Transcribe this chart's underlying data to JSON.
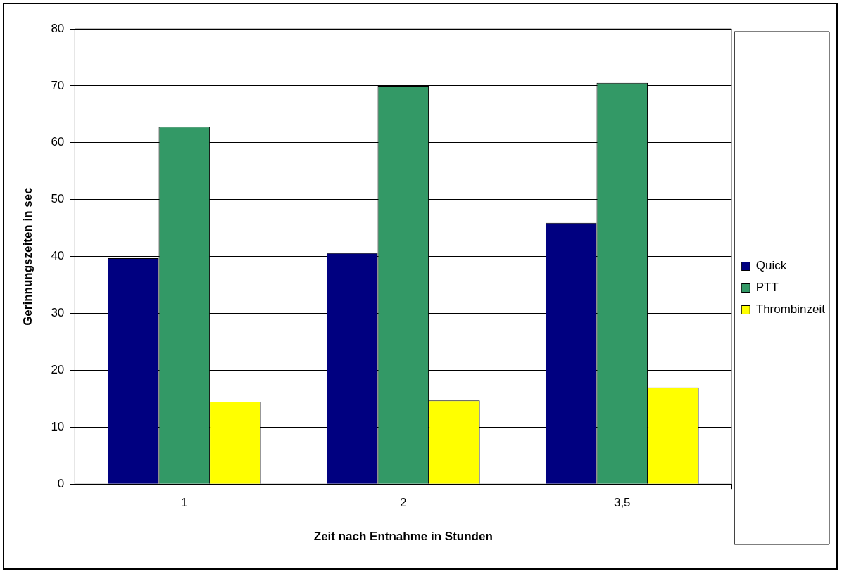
{
  "chart_data": {
    "type": "bar",
    "xlabel": "Zeit nach Entnahme in Stunden",
    "ylabel": "Gerinnungszeiten in sec",
    "categories": [
      "1",
      "2",
      "3,5"
    ],
    "series": [
      {
        "name": "Quick",
        "color": "#000080",
        "values": [
          39.7,
          40.6,
          45.9
        ]
      },
      {
        "name": "PTT",
        "color": "#339966",
        "values": [
          62.8,
          70.0,
          70.5
        ]
      },
      {
        "name": "Thrombinzeit",
        "color": "#ffff00",
        "values": [
          14.5,
          14.7,
          17.0
        ]
      }
    ],
    "ylim": [
      0,
      80
    ],
    "yticks": [
      0,
      10,
      20,
      30,
      40,
      50,
      60,
      70,
      80
    ],
    "grid": "y",
    "legend": "right"
  }
}
